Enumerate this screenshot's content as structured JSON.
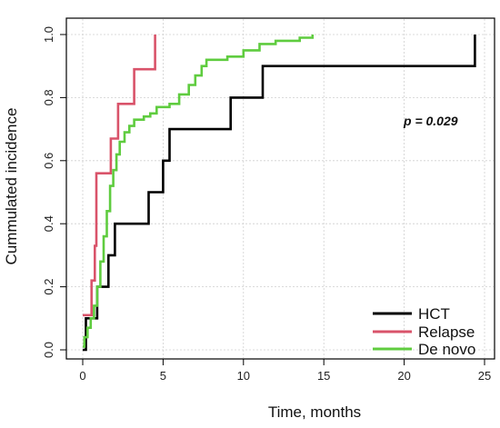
{
  "chart_data": {
    "type": "line",
    "step": true,
    "xlabel": "Time, months",
    "ylabel": "Cummulated incidence",
    "xlim": [
      0,
      25
    ],
    "ylim": [
      0,
      1
    ],
    "x_ticks": [
      0,
      5,
      10,
      15,
      20,
      25
    ],
    "y_ticks": [
      0.0,
      0.2,
      0.4,
      0.6,
      0.8,
      1.0
    ],
    "x_tick_labels": [
      "0",
      "5",
      "10",
      "15",
      "20",
      "25"
    ],
    "y_tick_labels": [
      "0.0",
      "0.2",
      "0.4",
      "0.6",
      "0.8",
      "1.0"
    ],
    "grid": true,
    "legend": {
      "position": "bottom-right"
    },
    "annotation": "p = 0.029",
    "series": [
      {
        "name": "HCT",
        "color": "#000000",
        "points": [
          [
            0,
            0
          ],
          [
            0.2,
            0
          ],
          [
            0.2,
            0.1
          ],
          [
            0.9,
            0.1
          ],
          [
            0.9,
            0.2
          ],
          [
            1.6,
            0.2
          ],
          [
            1.6,
            0.3
          ],
          [
            2.0,
            0.3
          ],
          [
            2.0,
            0.4
          ],
          [
            4.1,
            0.4
          ],
          [
            4.1,
            0.5
          ],
          [
            5.0,
            0.5
          ],
          [
            5.0,
            0.6
          ],
          [
            5.4,
            0.6
          ],
          [
            5.4,
            0.7
          ],
          [
            9.2,
            0.7
          ],
          [
            9.2,
            0.8
          ],
          [
            11.2,
            0.8
          ],
          [
            11.2,
            0.9
          ],
          [
            24.4,
            0.9
          ],
          [
            24.4,
            1.0
          ]
        ]
      },
      {
        "name": "Relapse",
        "color": "#d9536a",
        "points": [
          [
            0,
            0.11
          ],
          [
            0.55,
            0.11
          ],
          [
            0.55,
            0.22
          ],
          [
            0.75,
            0.22
          ],
          [
            0.75,
            0.33
          ],
          [
            0.85,
            0.33
          ],
          [
            0.85,
            0.56
          ],
          [
            1.75,
            0.56
          ],
          [
            1.75,
            0.67
          ],
          [
            2.2,
            0.67
          ],
          [
            2.2,
            0.78
          ],
          [
            3.2,
            0.78
          ],
          [
            3.2,
            0.89
          ],
          [
            4.5,
            0.89
          ],
          [
            4.5,
            1.0
          ]
        ]
      },
      {
        "name": "De novo",
        "color": "#5fcc3f",
        "points": [
          [
            0,
            0.01
          ],
          [
            0.1,
            0.01
          ],
          [
            0.1,
            0.04
          ],
          [
            0.3,
            0.04
          ],
          [
            0.3,
            0.07
          ],
          [
            0.5,
            0.07
          ],
          [
            0.5,
            0.1
          ],
          [
            0.7,
            0.1
          ],
          [
            0.7,
            0.14
          ],
          [
            0.9,
            0.14
          ],
          [
            0.9,
            0.2
          ],
          [
            1.1,
            0.2
          ],
          [
            1.1,
            0.28
          ],
          [
            1.3,
            0.28
          ],
          [
            1.3,
            0.36
          ],
          [
            1.5,
            0.36
          ],
          [
            1.5,
            0.44
          ],
          [
            1.7,
            0.44
          ],
          [
            1.7,
            0.52
          ],
          [
            1.9,
            0.52
          ],
          [
            1.9,
            0.57
          ],
          [
            2.1,
            0.57
          ],
          [
            2.1,
            0.62
          ],
          [
            2.3,
            0.62
          ],
          [
            2.3,
            0.66
          ],
          [
            2.6,
            0.66
          ],
          [
            2.6,
            0.69
          ],
          [
            2.9,
            0.69
          ],
          [
            2.9,
            0.71
          ],
          [
            3.2,
            0.71
          ],
          [
            3.2,
            0.73
          ],
          [
            3.8,
            0.73
          ],
          [
            3.8,
            0.74
          ],
          [
            4.2,
            0.74
          ],
          [
            4.2,
            0.75
          ],
          [
            4.6,
            0.75
          ],
          [
            4.6,
            0.77
          ],
          [
            5.4,
            0.77
          ],
          [
            5.4,
            0.78
          ],
          [
            6.0,
            0.78
          ],
          [
            6.0,
            0.81
          ],
          [
            6.6,
            0.81
          ],
          [
            6.6,
            0.84
          ],
          [
            7.0,
            0.84
          ],
          [
            7.0,
            0.87
          ],
          [
            7.4,
            0.87
          ],
          [
            7.4,
            0.9
          ],
          [
            7.7,
            0.9
          ],
          [
            7.7,
            0.92
          ],
          [
            9.0,
            0.92
          ],
          [
            9.0,
            0.93
          ],
          [
            10.0,
            0.93
          ],
          [
            10.0,
            0.95
          ],
          [
            11.0,
            0.95
          ],
          [
            11.0,
            0.97
          ],
          [
            12.0,
            0.97
          ],
          [
            12.0,
            0.98
          ],
          [
            13.5,
            0.98
          ],
          [
            13.5,
            0.99
          ],
          [
            14.3,
            0.99
          ],
          [
            14.3,
            1.0
          ]
        ]
      }
    ]
  }
}
